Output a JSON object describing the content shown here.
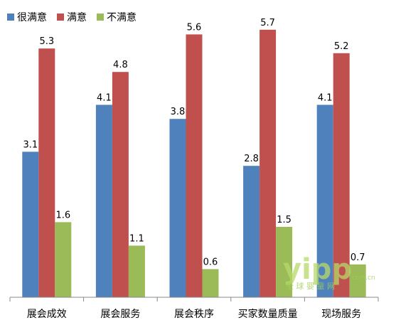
{
  "chart_data": {
    "type": "bar",
    "categories": [
      "展会成效",
      "展会服务",
      "展会秩序",
      "买家数量质量",
      "现场服务"
    ],
    "series": [
      {
        "name": "很满意",
        "color": "#4f81bd",
        "values": [
          3.1,
          4.1,
          3.8,
          2.8,
          4.1
        ]
      },
      {
        "name": "满意",
        "color": "#c0504d",
        "values": [
          5.3,
          4.8,
          5.6,
          5.7,
          5.2
        ]
      },
      {
        "name": "不满意",
        "color": "#9bbb59",
        "values": [
          1.6,
          1.1,
          0.6,
          1.5,
          0.7
        ]
      }
    ],
    "ylim": [
      0,
      6
    ],
    "grid": false,
    "legend_position": "top-left"
  },
  "watermark": {
    "logo": "yipp",
    "text": "全 球 婴 童 网",
    "url": ".com.cn"
  }
}
